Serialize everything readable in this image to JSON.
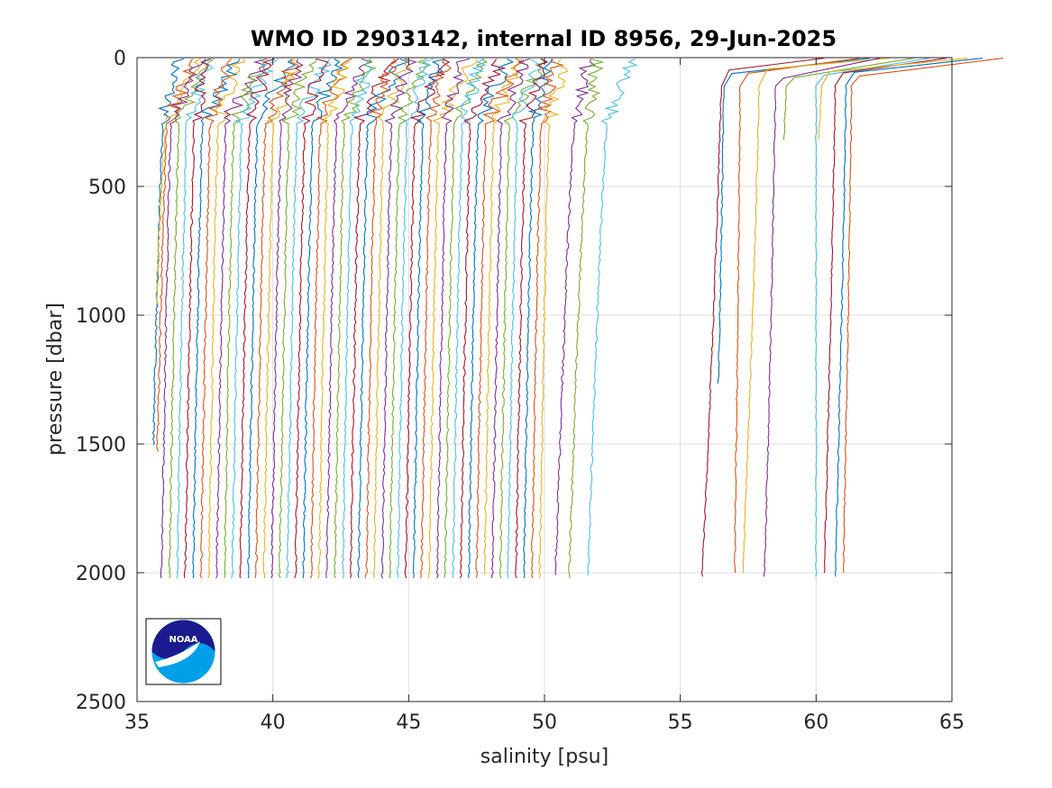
{
  "chart_data": {
    "type": "line",
    "title": "WMO ID 2903142, internal ID 8956, 29-Jun-2025",
    "xlabel": "salinity [psu]",
    "ylabel": "pressure [dbar]",
    "xlim": [
      35,
      65
    ],
    "ylim": [
      0,
      2500
    ],
    "y_reversed": true,
    "xticks": [
      "35",
      "40",
      "45",
      "50",
      "55",
      "60",
      "65"
    ],
    "yticks": [
      "0",
      "500",
      "1000",
      "1500",
      "2000",
      "2500"
    ],
    "grid": true,
    "legend": "none",
    "logo": {
      "name": "noaa-logo",
      "text": "NOAA"
    },
    "series_colors": [
      "#0072BD",
      "#D95319",
      "#EDB120",
      "#7E2F8E",
      "#77AC30",
      "#4DBEEE",
      "#A2142F"
    ],
    "profiles": {
      "note_units": "salinity offset profiles; deep value at max pressure",
      "group_a_deep_start": 35.9,
      "group_a_deep_step": 0.29,
      "group_a_count": 49,
      "group_a_max_pressure": 2020,
      "short_profiles": [
        {
          "deep_salinity": 35.6,
          "max_pressure": 1510
        },
        {
          "deep_salinity": 35.75,
          "max_pressure": 1530
        },
        {
          "deep_salinity": 35.7,
          "max_pressure": 970
        }
      ],
      "group_b": [
        {
          "deep_salinity": 50.4,
          "max_pressure": 2020
        },
        {
          "deep_salinity": 50.9,
          "max_pressure": 2030
        },
        {
          "deep_salinity": 51.6,
          "max_pressure": 2010
        }
      ],
      "group_c": [
        {
          "deep_salinity": 55.8,
          "mid_salinity": 56.5,
          "max_pressure": 2020
        },
        {
          "deep_salinity": 56.4,
          "mid_salinity": 56.6,
          "max_pressure": 1270
        },
        {
          "deep_salinity": 57.0,
          "mid_salinity": 57.2,
          "max_pressure": 2000
        },
        {
          "deep_salinity": 57.3,
          "mid_salinity": 57.9,
          "max_pressure": 2010
        },
        {
          "deep_salinity": 58.1,
          "mid_salinity": 58.5,
          "max_pressure": 2020
        },
        {
          "deep_salinity": 58.8,
          "mid_salinity": 58.9,
          "max_pressure": 330
        },
        {
          "deep_salinity": 60.0,
          "mid_salinity": 60.0,
          "max_pressure": 2020
        },
        {
          "deep_salinity": 60.3,
          "mid_salinity": 60.7,
          "max_pressure": 2010
        },
        {
          "deep_salinity": 60.7,
          "mid_salinity": 61.1,
          "max_pressure": 2020
        },
        {
          "deep_salinity": 61.0,
          "mid_salinity": 61.3,
          "max_pressure": 2010
        },
        {
          "deep_salinity": 60.1,
          "mid_salinity": 60.2,
          "max_pressure": 320
        }
      ]
    }
  }
}
